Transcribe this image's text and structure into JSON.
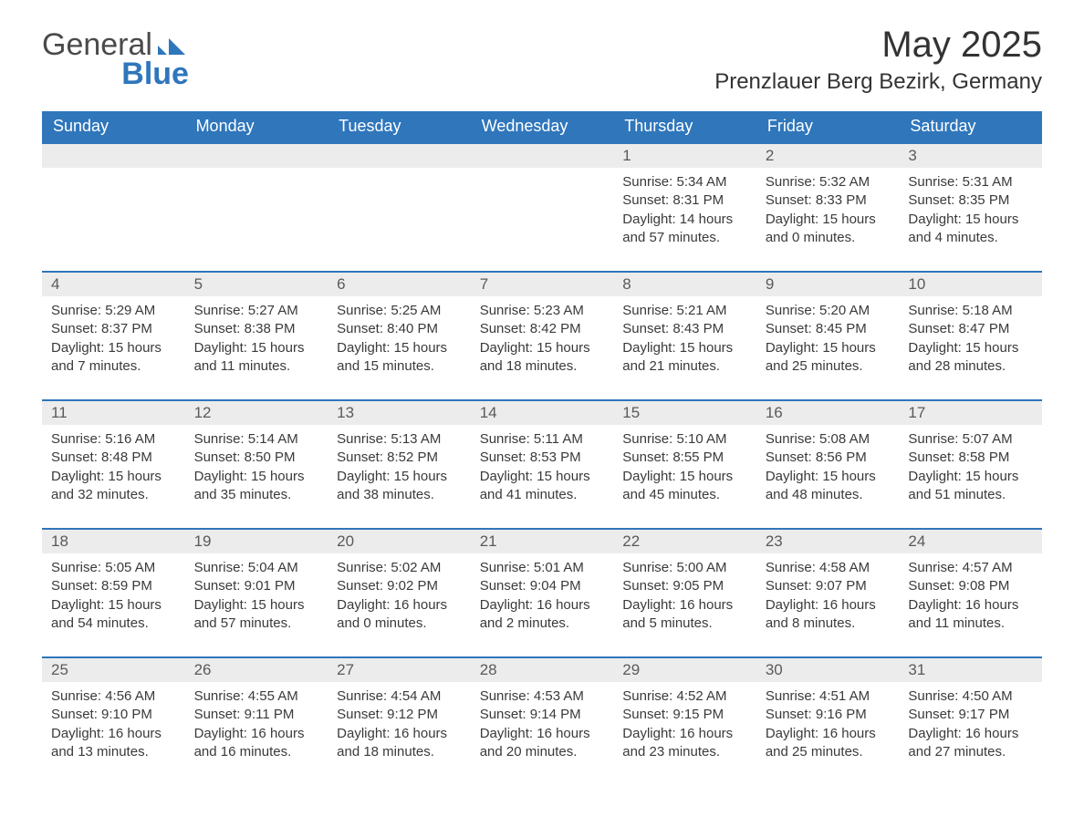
{
  "brand": {
    "word1": "General",
    "word2": "Blue"
  },
  "title": "May 2025",
  "location": "Prenzlauer Berg Bezirk, Germany",
  "colors": {
    "header_bg": "#2f76bb",
    "header_text": "#ffffff",
    "daynum_bg": "#ececec",
    "daynum_text": "#5a5a5a",
    "body_text": "#3a3a3a",
    "week_border": "#2f76bb",
    "page_bg": "#ffffff",
    "logo_gray": "#4a4a4a",
    "logo_blue": "#2f76bb"
  },
  "typography": {
    "title_fontsize": 40,
    "location_fontsize": 24,
    "header_fontsize": 18,
    "daynum_fontsize": 17,
    "body_fontsize": 15,
    "logo_fontsize": 34
  },
  "columns": [
    "Sunday",
    "Monday",
    "Tuesday",
    "Wednesday",
    "Thursday",
    "Friday",
    "Saturday"
  ],
  "weeks": [
    [
      {
        "day": "",
        "lines": []
      },
      {
        "day": "",
        "lines": []
      },
      {
        "day": "",
        "lines": []
      },
      {
        "day": "",
        "lines": []
      },
      {
        "day": "1",
        "lines": [
          "Sunrise: 5:34 AM",
          "Sunset: 8:31 PM",
          "Daylight: 14 hours and 57 minutes."
        ]
      },
      {
        "day": "2",
        "lines": [
          "Sunrise: 5:32 AM",
          "Sunset: 8:33 PM",
          "Daylight: 15 hours and 0 minutes."
        ]
      },
      {
        "day": "3",
        "lines": [
          "Sunrise: 5:31 AM",
          "Sunset: 8:35 PM",
          "Daylight: 15 hours and 4 minutes."
        ]
      }
    ],
    [
      {
        "day": "4",
        "lines": [
          "Sunrise: 5:29 AM",
          "Sunset: 8:37 PM",
          "Daylight: 15 hours and 7 minutes."
        ]
      },
      {
        "day": "5",
        "lines": [
          "Sunrise: 5:27 AM",
          "Sunset: 8:38 PM",
          "Daylight: 15 hours and 11 minutes."
        ]
      },
      {
        "day": "6",
        "lines": [
          "Sunrise: 5:25 AM",
          "Sunset: 8:40 PM",
          "Daylight: 15 hours and 15 minutes."
        ]
      },
      {
        "day": "7",
        "lines": [
          "Sunrise: 5:23 AM",
          "Sunset: 8:42 PM",
          "Daylight: 15 hours and 18 minutes."
        ]
      },
      {
        "day": "8",
        "lines": [
          "Sunrise: 5:21 AM",
          "Sunset: 8:43 PM",
          "Daylight: 15 hours and 21 minutes."
        ]
      },
      {
        "day": "9",
        "lines": [
          "Sunrise: 5:20 AM",
          "Sunset: 8:45 PM",
          "Daylight: 15 hours and 25 minutes."
        ]
      },
      {
        "day": "10",
        "lines": [
          "Sunrise: 5:18 AM",
          "Sunset: 8:47 PM",
          "Daylight: 15 hours and 28 minutes."
        ]
      }
    ],
    [
      {
        "day": "11",
        "lines": [
          "Sunrise: 5:16 AM",
          "Sunset: 8:48 PM",
          "Daylight: 15 hours and 32 minutes."
        ]
      },
      {
        "day": "12",
        "lines": [
          "Sunrise: 5:14 AM",
          "Sunset: 8:50 PM",
          "Daylight: 15 hours and 35 minutes."
        ]
      },
      {
        "day": "13",
        "lines": [
          "Sunrise: 5:13 AM",
          "Sunset: 8:52 PM",
          "Daylight: 15 hours and 38 minutes."
        ]
      },
      {
        "day": "14",
        "lines": [
          "Sunrise: 5:11 AM",
          "Sunset: 8:53 PM",
          "Daylight: 15 hours and 41 minutes."
        ]
      },
      {
        "day": "15",
        "lines": [
          "Sunrise: 5:10 AM",
          "Sunset: 8:55 PM",
          "Daylight: 15 hours and 45 minutes."
        ]
      },
      {
        "day": "16",
        "lines": [
          "Sunrise: 5:08 AM",
          "Sunset: 8:56 PM",
          "Daylight: 15 hours and 48 minutes."
        ]
      },
      {
        "day": "17",
        "lines": [
          "Sunrise: 5:07 AM",
          "Sunset: 8:58 PM",
          "Daylight: 15 hours and 51 minutes."
        ]
      }
    ],
    [
      {
        "day": "18",
        "lines": [
          "Sunrise: 5:05 AM",
          "Sunset: 8:59 PM",
          "Daylight: 15 hours and 54 minutes."
        ]
      },
      {
        "day": "19",
        "lines": [
          "Sunrise: 5:04 AM",
          "Sunset: 9:01 PM",
          "Daylight: 15 hours and 57 minutes."
        ]
      },
      {
        "day": "20",
        "lines": [
          "Sunrise: 5:02 AM",
          "Sunset: 9:02 PM",
          "Daylight: 16 hours and 0 minutes."
        ]
      },
      {
        "day": "21",
        "lines": [
          "Sunrise: 5:01 AM",
          "Sunset: 9:04 PM",
          "Daylight: 16 hours and 2 minutes."
        ]
      },
      {
        "day": "22",
        "lines": [
          "Sunrise: 5:00 AM",
          "Sunset: 9:05 PM",
          "Daylight: 16 hours and 5 minutes."
        ]
      },
      {
        "day": "23",
        "lines": [
          "Sunrise: 4:58 AM",
          "Sunset: 9:07 PM",
          "Daylight: 16 hours and 8 minutes."
        ]
      },
      {
        "day": "24",
        "lines": [
          "Sunrise: 4:57 AM",
          "Sunset: 9:08 PM",
          "Daylight: 16 hours and 11 minutes."
        ]
      }
    ],
    [
      {
        "day": "25",
        "lines": [
          "Sunrise: 4:56 AM",
          "Sunset: 9:10 PM",
          "Daylight: 16 hours and 13 minutes."
        ]
      },
      {
        "day": "26",
        "lines": [
          "Sunrise: 4:55 AM",
          "Sunset: 9:11 PM",
          "Daylight: 16 hours and 16 minutes."
        ]
      },
      {
        "day": "27",
        "lines": [
          "Sunrise: 4:54 AM",
          "Sunset: 9:12 PM",
          "Daylight: 16 hours and 18 minutes."
        ]
      },
      {
        "day": "28",
        "lines": [
          "Sunrise: 4:53 AM",
          "Sunset: 9:14 PM",
          "Daylight: 16 hours and 20 minutes."
        ]
      },
      {
        "day": "29",
        "lines": [
          "Sunrise: 4:52 AM",
          "Sunset: 9:15 PM",
          "Daylight: 16 hours and 23 minutes."
        ]
      },
      {
        "day": "30",
        "lines": [
          "Sunrise: 4:51 AM",
          "Sunset: 9:16 PM",
          "Daylight: 16 hours and 25 minutes."
        ]
      },
      {
        "day": "31",
        "lines": [
          "Sunrise: 4:50 AM",
          "Sunset: 9:17 PM",
          "Daylight: 16 hours and 27 minutes."
        ]
      }
    ]
  ]
}
